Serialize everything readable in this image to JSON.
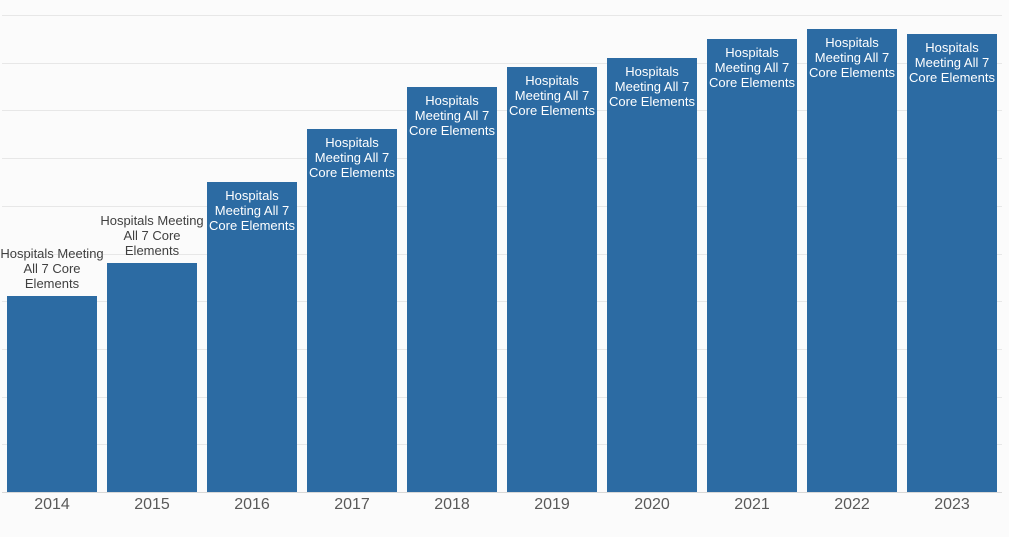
{
  "chart_data": {
    "type": "bar",
    "title": "",
    "xlabel": "",
    "ylabel": "",
    "y_axis_labels_visible": false,
    "ylim": [
      0,
      100
    ],
    "grid": "horizontal gridlines, ~10% intervals, no y tick labels",
    "legend": "none",
    "categories": [
      "2014",
      "2015",
      "2016",
      "2017",
      "2018",
      "2019",
      "2020",
      "2021",
      "2022",
      "2023"
    ],
    "values": [
      41,
      48,
      65,
      76,
      85,
      89,
      91,
      95,
      97,
      96
    ],
    "values_note": "estimated from bar heights vs gridlines; no numeric axis labels are rendered",
    "bar_label": "Hospitals Meeting All 7 Core Elements",
    "bars": [
      {
        "year": "2014",
        "value": 41,
        "label": "Hospitals Meeting All 7 Core Elements",
        "label_position": "above"
      },
      {
        "year": "2015",
        "value": 48,
        "label": "Hospitals Meeting All 7 Core Elements",
        "label_position": "above"
      },
      {
        "year": "2016",
        "value": 65,
        "label": "Hospitals Meeting All 7 Core Elements",
        "label_position": "inside"
      },
      {
        "year": "2017",
        "value": 76,
        "label": "Hospitals Meeting All 7 Core Elements",
        "label_position": "inside"
      },
      {
        "year": "2018",
        "value": 85,
        "label": "Hospitals Meeting All 7 Core Elements",
        "label_position": "inside"
      },
      {
        "year": "2019",
        "value": 89,
        "label": "Hospitals Meeting All 7 Core Elements",
        "label_position": "inside"
      },
      {
        "year": "2020",
        "value": 91,
        "label": "Hospitals Meeting All 7 Core Elements",
        "label_position": "inside"
      },
      {
        "year": "2021",
        "value": 95,
        "label": "Hospitals Meeting All 7 Core Elements",
        "label_position": "inside"
      },
      {
        "year": "2022",
        "value": 97,
        "label": "Hospitals Meeting All 7 Core Elements",
        "label_position": "inside"
      },
      {
        "year": "2023",
        "value": 96,
        "label": "Hospitals Meeting All 7 Core Elements",
        "label_position": "inside"
      }
    ]
  },
  "colors": {
    "bar": "#2c6ba3",
    "bar_label_inside": "#ffffff",
    "bar_label_above": "#404040",
    "x_tick_text": "#595959",
    "gridline": "#e7e7e7",
    "axis_line": "#d8d8d8",
    "background": "#fbfbfb"
  }
}
